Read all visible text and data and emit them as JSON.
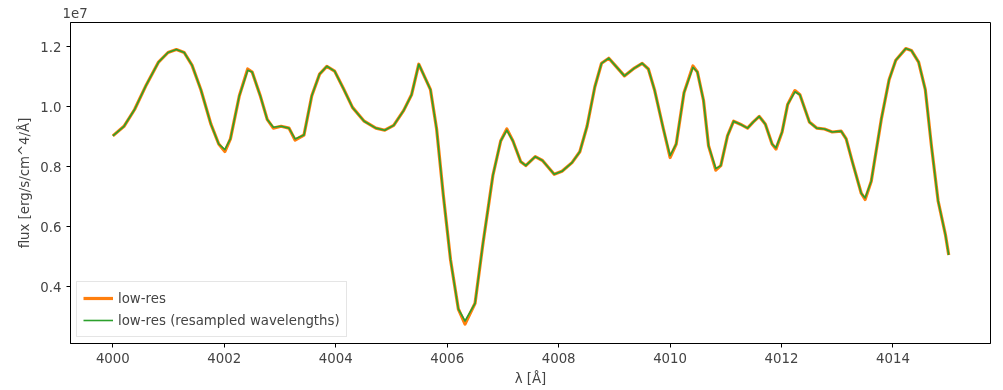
{
  "chart_data": {
    "type": "line",
    "xlabel": "λ [Å]",
    "ylabel": "flux [erg/s/cm^4/Å]",
    "annotations": [
      "1e7"
    ],
    "x": [
      4000.0,
      4000.2,
      4000.39,
      4000.6,
      4000.82,
      4000.99,
      4001.14,
      4001.28,
      4001.42,
      4001.58,
      4001.76,
      4001.9,
      4002.01,
      4002.11,
      4002.27,
      4002.42,
      4002.5,
      4002.65,
      4002.77,
      4002.88,
      4003.02,
      4003.16,
      4003.27,
      4003.43,
      4003.57,
      4003.71,
      4003.84,
      4003.98,
      4004.14,
      4004.3,
      4004.51,
      4004.72,
      4004.88,
      4005.04,
      4005.22,
      4005.36,
      4005.49,
      4005.7,
      4005.81,
      4005.93,
      4006.06,
      4006.2,
      4006.32,
      4006.5,
      4006.64,
      4006.82,
      4006.96,
      4007.07,
      4007.18,
      4007.32,
      4007.41,
      4007.58,
      4007.71,
      4007.92,
      4008.06,
      4008.24,
      4008.38,
      4008.51,
      4008.65,
      4008.77,
      4008.9,
      4009.01,
      4009.18,
      4009.36,
      4009.5,
      4009.61,
      4009.72,
      4009.88,
      4010.0,
      4010.11,
      4010.25,
      4010.41,
      4010.49,
      4010.6,
      4010.69,
      4010.82,
      4010.91,
      4011.03,
      4011.14,
      4011.26,
      4011.39,
      4011.49,
      4011.6,
      4011.71,
      4011.83,
      4011.9,
      4012.01,
      4012.11,
      4012.24,
      4012.33,
      4012.5,
      4012.63,
      4012.77,
      4012.91,
      4013.07,
      4013.16,
      4013.27,
      4013.43,
      4013.5,
      4013.61,
      4013.79,
      4013.93,
      4014.05,
      4014.23,
      4014.33,
      4014.46,
      4014.58,
      4014.69,
      4014.81,
      4014.94,
      4015.0
    ],
    "series": [
      {
        "name": "low-res",
        "color": "#ff7f0e",
        "values": [
          0.902,
          0.934,
          0.99,
          1.072,
          1.148,
          1.18,
          1.19,
          1.18,
          1.138,
          1.056,
          0.941,
          0.875,
          0.85,
          0.892,
          1.036,
          1.125,
          1.115,
          1.033,
          0.957,
          0.928,
          0.934,
          0.928,
          0.888,
          0.905,
          1.036,
          1.108,
          1.134,
          1.118,
          1.059,
          0.997,
          0.951,
          0.928,
          0.921,
          0.937,
          0.987,
          1.039,
          1.141,
          1.056,
          0.925,
          0.705,
          0.489,
          0.325,
          0.275,
          0.344,
          0.541,
          0.77,
          0.885,
          0.925,
          0.885,
          0.816,
          0.803,
          0.833,
          0.82,
          0.774,
          0.784,
          0.813,
          0.849,
          0.934,
          1.066,
          1.144,
          1.161,
          1.138,
          1.102,
          1.128,
          1.144,
          1.125,
          1.056,
          0.925,
          0.83,
          0.875,
          1.046,
          1.135,
          1.115,
          1.02,
          0.869,
          0.788,
          0.803,
          0.902,
          0.951,
          0.941,
          0.928,
          0.948,
          0.967,
          0.941,
          0.875,
          0.858,
          0.915,
          1.007,
          1.053,
          1.039,
          0.948,
          0.928,
          0.925,
          0.915,
          0.918,
          0.892,
          0.816,
          0.711,
          0.69,
          0.751,
          0.957,
          1.089,
          1.154,
          1.193,
          1.187,
          1.148,
          1.056,
          0.869,
          0.685,
          0.574,
          0.505
        ]
      },
      {
        "name": "low-res (resampled wavelengths)",
        "color": "#2ca02c",
        "values": [
          0.902,
          0.934,
          0.99,
          1.072,
          1.148,
          1.18,
          1.19,
          1.18,
          1.138,
          1.056,
          0.941,
          0.875,
          0.856,
          0.892,
          1.036,
          1.121,
          1.115,
          1.033,
          0.957,
          0.931,
          0.934,
          0.928,
          0.892,
          0.905,
          1.036,
          1.108,
          1.134,
          1.118,
          1.059,
          0.997,
          0.951,
          0.928,
          0.921,
          0.937,
          0.987,
          1.039,
          1.141,
          1.056,
          0.925,
          0.705,
          0.489,
          0.325,
          0.285,
          0.344,
          0.541,
          0.77,
          0.885,
          0.921,
          0.885,
          0.816,
          0.803,
          0.833,
          0.82,
          0.774,
          0.784,
          0.813,
          0.849,
          0.934,
          1.066,
          1.144,
          1.161,
          1.138,
          1.102,
          1.128,
          1.144,
          1.125,
          1.056,
          0.925,
          0.836,
          0.875,
          1.046,
          1.131,
          1.115,
          1.02,
          0.869,
          0.793,
          0.803,
          0.902,
          0.951,
          0.941,
          0.928,
          0.948,
          0.967,
          0.941,
          0.875,
          0.862,
          0.915,
          1.007,
          1.049,
          1.039,
          0.948,
          0.928,
          0.925,
          0.915,
          0.918,
          0.892,
          0.816,
          0.711,
          0.695,
          0.751,
          0.957,
          1.089,
          1.154,
          1.193,
          1.187,
          1.148,
          1.056,
          0.869,
          0.685,
          0.574,
          0.505
        ]
      }
    ],
    "xlim": [
      3999.24,
      4015.75
    ],
    "ylim": [
      0.21,
      1.28
    ],
    "xticks": [
      4000,
      4002,
      4004,
      4006,
      4008,
      4010,
      4012,
      4014
    ],
    "yticks": [
      {
        "value": 0.4,
        "label": "0.4"
      },
      {
        "value": 0.6,
        "label": "0.6"
      },
      {
        "value": 0.8,
        "label": "0.8"
      },
      {
        "value": 1.0,
        "label": "1.0"
      },
      {
        "value": 1.2,
        "label": "1.2"
      }
    ],
    "grid": false,
    "legend": "bottom left"
  }
}
